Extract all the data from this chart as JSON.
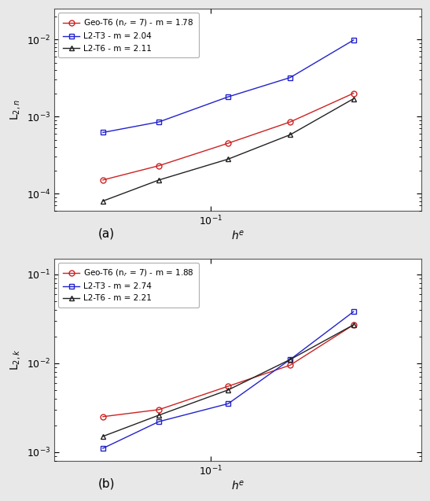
{
  "panel_a": {
    "title": "(a)",
    "xlabel": "h",
    "ylabel": "L$_{2,n}$",
    "xlim": [
      0.042,
      0.32
    ],
    "ylim": [
      6e-05,
      0.025
    ],
    "series": [
      {
        "label": "Geo-T6 (n$_r$ = 7) - m = 1.78",
        "color": "#cc2222",
        "marker": "o",
        "x": [
          0.055,
          0.075,
          0.11,
          0.155,
          0.22
        ],
        "y": [
          0.00015,
          0.00023,
          0.00045,
          0.00085,
          0.002
        ]
      },
      {
        "label": "L2-T3 - m = 2.04",
        "color": "#2222cc",
        "marker": "s",
        "x": [
          0.055,
          0.075,
          0.11,
          0.155,
          0.22
        ],
        "y": [
          0.00062,
          0.00085,
          0.0018,
          0.0032,
          0.0098
        ]
      },
      {
        "label": "L2-T6 - m = 2.11",
        "color": "#222222",
        "marker": "^",
        "x": [
          0.055,
          0.075,
          0.11,
          0.155,
          0.22
        ],
        "y": [
          8e-05,
          0.00015,
          0.00028,
          0.00058,
          0.0017
        ]
      }
    ]
  },
  "panel_b": {
    "title": "(b)",
    "xlabel": "h",
    "ylabel": "L$_{2,k}$",
    "xlim": [
      0.042,
      0.32
    ],
    "ylim": [
      0.0008,
      0.15
    ],
    "series": [
      {
        "label": "Geo-T6 (n$_r$ = 7) - m = 1.88",
        "color": "#cc2222",
        "marker": "o",
        "x": [
          0.055,
          0.075,
          0.11,
          0.155,
          0.22
        ],
        "y": [
          0.0025,
          0.003,
          0.0055,
          0.0095,
          0.027
        ]
      },
      {
        "label": "L2-T3 - m = 2.74",
        "color": "#2222cc",
        "marker": "s",
        "x": [
          0.055,
          0.075,
          0.11,
          0.155,
          0.22
        ],
        "y": [
          0.0011,
          0.0022,
          0.0035,
          0.011,
          0.038
        ]
      },
      {
        "label": "L2-T6 - m = 2.21",
        "color": "#222222",
        "marker": "^",
        "x": [
          0.055,
          0.075,
          0.11,
          0.155,
          0.22
        ],
        "y": [
          0.0015,
          0.0026,
          0.005,
          0.011,
          0.027
        ]
      }
    ]
  },
  "fig_bg": "#e8e8e8",
  "axes_bg": "#ffffff",
  "figsize": [
    5.47,
    6.37
  ],
  "dpi": 100
}
